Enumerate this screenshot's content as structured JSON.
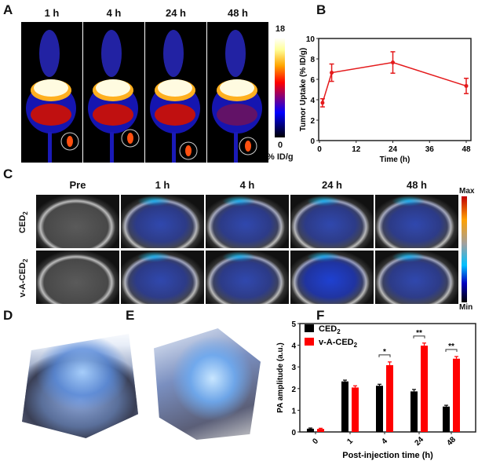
{
  "panel_letters": {
    "a": "A",
    "b": "B",
    "c": "C",
    "d": "D",
    "e": "E",
    "f": "F"
  },
  "panel_a": {
    "timepoints": [
      "1 h",
      "4 h",
      "24 h",
      "48 h"
    ],
    "colorbar": {
      "max": "18",
      "min": "0",
      "unit": "% ID/g",
      "colors": [
        "#000000",
        "#0000ff",
        "#ff0000",
        "#ffa500",
        "#ffff99",
        "#ffffff"
      ]
    }
  },
  "panel_c": {
    "columns": [
      "Pre",
      "1 h",
      "4 h",
      "24 h",
      "48 h"
    ],
    "rows": [
      {
        "label": "CED",
        "sub": "2"
      },
      {
        "label": "v-A-CED",
        "sub": "2"
      }
    ],
    "colorbar": {
      "max": "Max",
      "min": "Min",
      "colors": [
        "#000000",
        "#0000c0",
        "#00c0ff",
        "#a0a0a0",
        "#ffa000",
        "#c00000"
      ]
    }
  },
  "chart_data": [
    {
      "type": "line",
      "panel": "B",
      "xlabel": "Time (h)",
      "ylabel": "Tumor Uptake (% ID/g)",
      "xlim": [
        0,
        48
      ],
      "ylim": [
        0,
        10
      ],
      "xticks": [
        0,
        12,
        24,
        36,
        48
      ],
      "yticks": [
        0,
        2,
        4,
        6,
        8,
        10
      ],
      "color": "#e41a1c",
      "x": [
        1,
        4,
        24,
        48
      ],
      "y": [
        3.7,
        6.65,
        7.65,
        5.35
      ],
      "yerr": [
        0.4,
        0.85,
        1.05,
        0.75
      ]
    },
    {
      "type": "bar",
      "panel": "F",
      "xlabel": "Post-injection time (h)",
      "ylabel": "PA amplitude (a.u.)",
      "ylim": [
        0,
        5
      ],
      "yticks": [
        0,
        1,
        2,
        3,
        4,
        5
      ],
      "categories": [
        "0",
        "1",
        "4",
        "24",
        "48"
      ],
      "legend_position": "top-left",
      "series": [
        {
          "name": "CED",
          "name_sub": "2",
          "color": "#000000",
          "values": [
            0.15,
            2.33,
            2.13,
            1.87,
            1.17
          ],
          "err": [
            0.03,
            0.06,
            0.07,
            0.09,
            0.06
          ]
        },
        {
          "name": "v-A-CED",
          "name_sub": "2",
          "color": "#ff0000",
          "values": [
            0.14,
            2.05,
            3.08,
            3.98,
            3.38
          ],
          "err": [
            0.03,
            0.08,
            0.15,
            0.12,
            0.1
          ]
        }
      ],
      "significance": [
        {
          "category": "4",
          "mark": "*"
        },
        {
          "category": "24",
          "mark": "**"
        },
        {
          "category": "48",
          "mark": "**"
        }
      ]
    }
  ]
}
